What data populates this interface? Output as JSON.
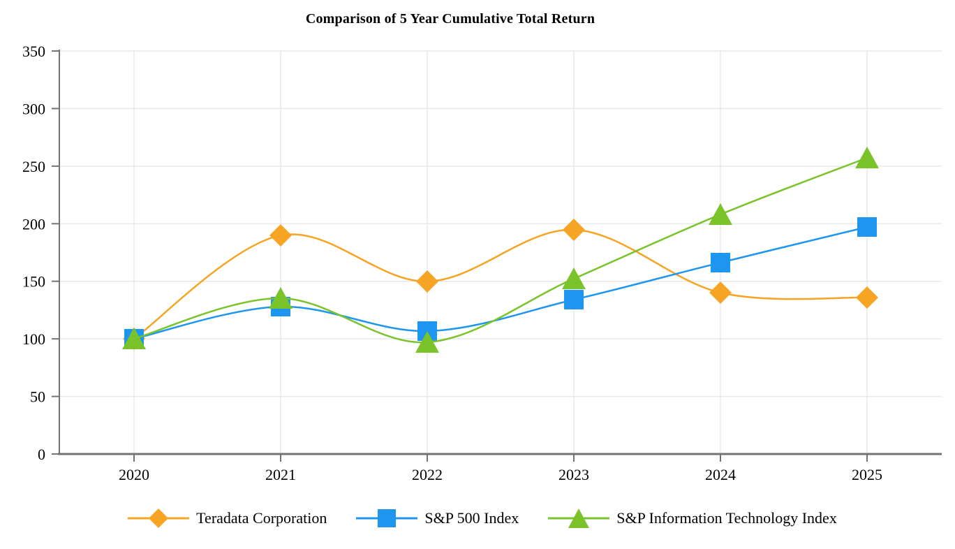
{
  "title": "Comparison of 5 Year Cumulative Total Return",
  "chart_data": {
    "type": "line",
    "title": "Comparison of 5 Year Cumulative Total Return",
    "categories": [
      "2020",
      "2021",
      "2022",
      "2023",
      "2024",
      "2025"
    ],
    "series": [
      {
        "name": "Teradata Corporation",
        "marker": "diamond",
        "color": "#F5A424",
        "values": [
          100,
          190,
          150,
          195,
          140,
          136
        ]
      },
      {
        "name": "S&P 500 Index",
        "marker": "square",
        "color": "#1E96F0",
        "values": [
          100,
          128,
          107,
          134,
          166,
          197
        ]
      },
      {
        "name": "S&P Information Technology Index",
        "marker": "triangle",
        "color": "#7AC32B",
        "values": [
          100,
          135,
          97,
          152,
          208,
          257
        ]
      }
    ],
    "xlabel": "",
    "ylabel": "",
    "ylim": [
      0,
      350
    ],
    "yticks": [
      0,
      50,
      100,
      150,
      200,
      250,
      300,
      350
    ],
    "grid": true,
    "smooth_lines": true,
    "legend_position": "bottom",
    "axis_color": "#737373",
    "grid_color": "#E8E8E8",
    "text_color": "#000000",
    "background_color": "#FFFFFF"
  }
}
